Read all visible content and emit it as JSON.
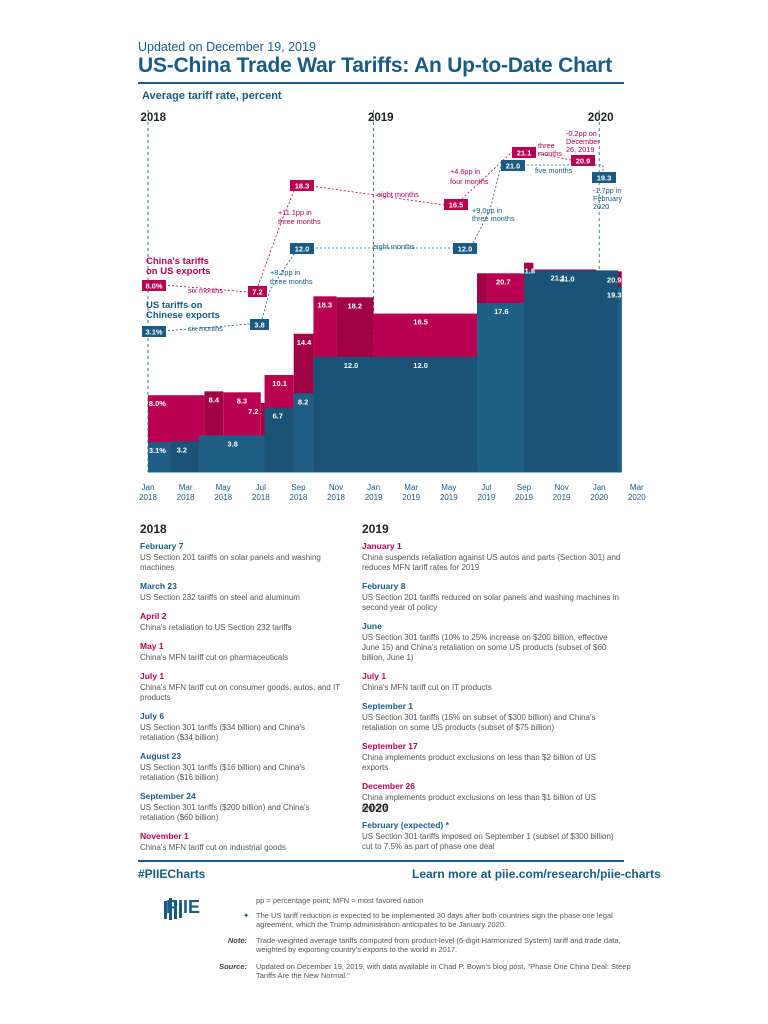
{
  "header": {
    "updated": "Updated on December 19, 2019",
    "title": "US-China Trade War Tariffs: An Up-to-Date Chart"
  },
  "chart_data": {
    "type": "area",
    "ylabel": "Average tariff rate, percent",
    "year_labels": [
      "2018",
      "2019",
      "2020"
    ],
    "x_tick_labels": [
      [
        "Jan",
        "2018"
      ],
      [
        "Mar",
        "2018"
      ],
      [
        "May",
        "2018"
      ],
      [
        "Jul",
        "2018"
      ],
      [
        "Sep",
        "2018"
      ],
      [
        "Nov",
        "2018"
      ],
      [
        "Jan",
        "2019"
      ],
      [
        "Mar",
        "2019"
      ],
      [
        "May",
        "2019"
      ],
      [
        "Jul",
        "2019"
      ],
      [
        "Sep",
        "2019"
      ],
      [
        "Nov",
        "2019"
      ],
      [
        "Jan",
        "2020"
      ],
      [
        "Mar",
        "2020"
      ]
    ],
    "series": [
      {
        "name": "China's tariffs on US exports",
        "color": "#b8024f",
        "steps": [
          {
            "start": 0,
            "end": 3,
            "value": 8.0
          },
          {
            "start": 3,
            "end": 4,
            "value": 8.4
          },
          {
            "start": 4,
            "end": 6,
            "value": 8.3
          },
          {
            "start": 6,
            "end": 6.2,
            "value": 7.2
          },
          {
            "start": 6.2,
            "end": 7.75,
            "value": 10.1
          },
          {
            "start": 7.75,
            "end": 8.8,
            "value": 14.4
          },
          {
            "start": 8.8,
            "end": 10.03,
            "value": 18.3
          },
          {
            "start": 10.03,
            "end": 12,
            "value": 18.2
          },
          {
            "start": 12,
            "end": 17.5,
            "value": 16.5
          },
          {
            "start": 17.5,
            "end": 18.03,
            "value": 20.7
          },
          {
            "start": 18.03,
            "end": 20,
            "value": 20.7
          },
          {
            "start": 20,
            "end": 20.5,
            "value": 21.8
          },
          {
            "start": 20.5,
            "end": 23.83,
            "value": 21.1
          },
          {
            "start": 23.83,
            "end": 25.2,
            "value": 20.9
          }
        ]
      },
      {
        "name": "US tariffs on Chinese exports",
        "color": "#1f5f85",
        "steps": [
          {
            "start": 0,
            "end": 1.2,
            "value": 3.1
          },
          {
            "start": 1.2,
            "end": 2.7,
            "value": 3.2
          },
          {
            "start": 2.7,
            "end": 6.2,
            "value": 3.8
          },
          {
            "start": 6.2,
            "end": 7.75,
            "value": 6.7
          },
          {
            "start": 7.75,
            "end": 8.8,
            "value": 8.2
          },
          {
            "start": 8.8,
            "end": 17.5,
            "value": 12.0
          },
          {
            "start": 17.5,
            "end": 20,
            "value": 17.6
          },
          {
            "start": 20,
            "end": 25,
            "value": 21.0
          },
          {
            "start": 25,
            "end": 25.2,
            "value": 19.3
          }
        ]
      }
    ],
    "bar_labels": [
      {
        "text": "8.0%",
        "series": 0,
        "x": 0.5,
        "v": 8.0
      },
      {
        "text": "8.4",
        "series": 0,
        "x": 3.5,
        "v": 8.4
      },
      {
        "text": "8.3",
        "series": 0,
        "x": 5.0,
        "v": 8.3
      },
      {
        "text": "7.2",
        "series": 0,
        "x": 5.6,
        "v": 7.2
      },
      {
        "text": "10.1",
        "series": 0,
        "x": 7.0,
        "v": 10.1
      },
      {
        "text": "14.4",
        "series": 0,
        "x": 8.3,
        "v": 14.4
      },
      {
        "text": "18.3",
        "series": 0,
        "x": 9.4,
        "v": 18.3
      },
      {
        "text": "18.2",
        "series": 0,
        "x": 11.0,
        "v": 18.2
      },
      {
        "text": "16.5",
        "series": 0,
        "x": 14.5,
        "v": 16.5
      },
      {
        "text": "20.7",
        "series": 0,
        "x": 17.0,
        "v": 20.7
      },
      {
        "text": "20.7",
        "series": 0,
        "x": 18.9,
        "v": 20.7
      },
      {
        "text": "21.8",
        "series": 0,
        "x": 20.2,
        "v": 21.8
      },
      {
        "text": "21.1",
        "series": 0,
        "x": 21.8,
        "v": 21.1
      },
      {
        "text": "20.9",
        "series": 0,
        "x": 24.8,
        "v": 20.9
      },
      {
        "text": "3.1%",
        "series": 1,
        "x": 0.5,
        "v": 3.1
      },
      {
        "text": "3.2",
        "series": 1,
        "x": 1.8,
        "v": 3.2
      },
      {
        "text": "3.8",
        "series": 1,
        "x": 4.5,
        "v": 3.8
      },
      {
        "text": "6.7",
        "series": 1,
        "x": 6.9,
        "v": 6.7
      },
      {
        "text": "8.2",
        "series": 1,
        "x": 8.25,
        "v": 8.2
      },
      {
        "text": "12.0",
        "series": 1,
        "x": 10.8,
        "v": 12.0
      },
      {
        "text": "12.0",
        "series": 1,
        "x": 14.5,
        "v": 12.0
      },
      {
        "text": "17.6",
        "series": 1,
        "x": 18.8,
        "v": 17.6
      },
      {
        "text": "21.0",
        "series": 1,
        "x": 22.3,
        "v": 21.0
      },
      {
        "text": "19.3",
        "series": 1,
        "x": 24.8,
        "v": 19.3
      }
    ],
    "annotations": {
      "legend_china_1": "China's tariffs",
      "legend_china_2": "on US exports",
      "legend_us_1": "US tariffs on",
      "legend_us_2": "Chinese exports",
      "boxes": [
        {
          "text": "8.0%",
          "series": 0
        },
        {
          "text": "7.2",
          "series": 0
        },
        {
          "text": "18.3",
          "series": 0
        },
        {
          "text": "16.5",
          "series": 0
        },
        {
          "text": "21.1",
          "series": 0
        },
        {
          "text": "20.9",
          "series": 0
        },
        {
          "text": "3.1%",
          "series": 1
        },
        {
          "text": "3.8",
          "series": 1
        },
        {
          "text": "12.0",
          "series": 1
        },
        {
          "text": "12.0",
          "series": 1
        },
        {
          "text": "21.0",
          "series": 1
        },
        {
          "text": "19.3",
          "series": 1
        }
      ],
      "notes": [
        {
          "text": "six months",
          "series": 0
        },
        {
          "text": "six months",
          "series": 1
        },
        {
          "text": "+11.1pp in",
          "series": 0
        },
        {
          "text": "three months",
          "series": 0
        },
        {
          "text": "+8.2pp in",
          "series": 1
        },
        {
          "text": "three months",
          "series": 1
        },
        {
          "text": "eight months",
          "series": 0
        },
        {
          "text": "eight months",
          "series": 1
        },
        {
          "text": "+4.6pp in",
          "series": 0
        },
        {
          "text": "four months",
          "series": 0
        },
        {
          "text": "+9.0pp in",
          "series": 1
        },
        {
          "text": "three months",
          "series": 1
        },
        {
          "text": "three",
          "series": 0
        },
        {
          "text": "months",
          "series": 0
        },
        {
          "text": "five months",
          "series": 1
        },
        {
          "text": "-0.2pp on",
          "series": 0
        },
        {
          "text": "December",
          "series": 0
        },
        {
          "text": "26, 2019",
          "series": 0
        },
        {
          "text": "-1.7pp in",
          "series": 1
        },
        {
          "text": "February",
          "series": 1
        },
        {
          "text": "2020",
          "series": 1
        }
      ]
    }
  },
  "timeline": {
    "y2018": {
      "heading": "2018",
      "events": [
        {
          "date": "February 7",
          "text": "US Section 201 tariffs on solar panels and washing machines",
          "who": "us"
        },
        {
          "date": "March 23",
          "text": "US Section 232 tariffs on steel and aluminum",
          "who": "us"
        },
        {
          "date": "April 2",
          "text": "China's retaliation to US Section 232 tariffs",
          "who": "china"
        },
        {
          "date": "May 1",
          "text": "China's MFN tariff cut on pharmaceuticals",
          "who": "china"
        },
        {
          "date": "July 1",
          "text": "China's MFN tariff cut on consumer goods, autos, and IT products",
          "who": "china"
        },
        {
          "date": "July 6",
          "text": "US Section 301 tariffs ($34 billion) and China's retaliation ($34 billion)",
          "who": "us"
        },
        {
          "date": "August 23",
          "text": "US Section 301 tariffs ($16 billion) and China's retaliation ($16 billion)",
          "who": "us"
        },
        {
          "date": "September 24",
          "text": "US Section 301 tariffs ($200 billion) and China's retaliation ($60 billion)",
          "who": "us"
        },
        {
          "date": "November 1",
          "text": "China's MFN tariff cut on industrial goods",
          "who": "china"
        }
      ]
    },
    "y2019": {
      "heading": "2019",
      "events": [
        {
          "date": "January 1",
          "text": "China suspends retaliation against US autos and parts (Section 301) and reduces MFN tariff rates for 2019",
          "who": "china"
        },
        {
          "date": "February 8",
          "text": "US Section 201 tariffs reduced on solar panels and washing machines in second year of policy",
          "who": "us"
        },
        {
          "date": "June",
          "text": "US Section 301 tariffs (10% to 25% increase on $200 billion, effective June 15) and China's retaliation on some US products (subset of $60 billion, June 1)",
          "who": "us"
        },
        {
          "date": "July 1",
          "text": "China's MFN tariff cut on IT products",
          "who": "china"
        },
        {
          "date": "September 1",
          "text": "US Section 301 tariffs (15% on subset of $300 billion) and China's retaliation on some US products (subset of $75 billion)",
          "who": "us"
        },
        {
          "date": "September 17",
          "text": "China implements product exclusions on less than $2 billion of US exports",
          "who": "china"
        },
        {
          "date": "December 26",
          "text": "China implements product exclusions on less than $1 billion of US exports",
          "who": "china"
        }
      ]
    },
    "y2020": {
      "heading": "2020",
      "events": [
        {
          "date": "February (expected) *",
          "text": "US Section 301 tariffs imposed on September 1 (subset of $300 billion) cut to 7.5% as part of phase one deal",
          "who": "us"
        }
      ]
    }
  },
  "footer": {
    "hashtag": "#PIIECharts",
    "learn_more": "Learn more at piie.com/research/piie-charts",
    "logo_text": "PIIE",
    "abbrev": "pp = percentage point; MFN = most favored nation",
    "asterisk_note": "The US tariff reduction is expected to be implemented 30 days after both countries sign the phase one legal agreement, which the Trump administration anticipates to be January 2020.",
    "note_label": "Note:",
    "note": "Trade-weighted average tariffs computed from product-level (6-digit Harmonized System) tariff and trade data, weighted by exporting country's exports to the world in 2017.",
    "source_label": "Source:",
    "source": "Updated on December 19, 2019, with data available in Chad P. Bown's blog post, \"Phase One China Deal: Steep Tariffs Are the New Normal.\""
  },
  "colors": {
    "brand": "#1a5b86",
    "china": "#b8024f",
    "us": "#1f5f85"
  }
}
